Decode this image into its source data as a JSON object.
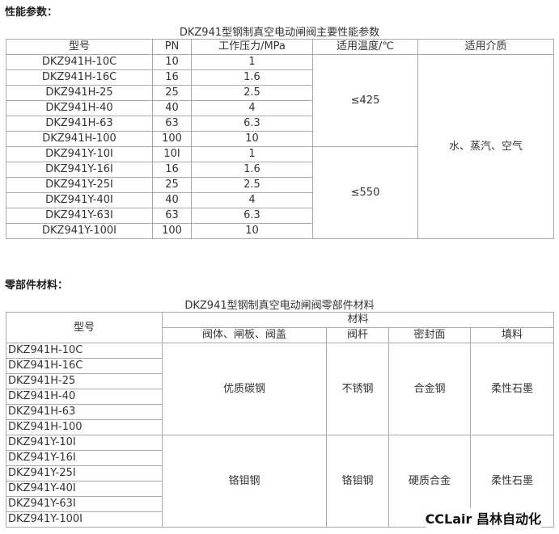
{
  "performance": {
    "heading": "性能参数：",
    "caption": "DKZ941型钢制真空电动闸阀主要性能参数",
    "headers": [
      "型号",
      "PN",
      "工作压力/MPa",
      "适用温度/℃",
      "适用介质"
    ],
    "rows": [
      [
        "DKZ941H-10C",
        "10",
        "1"
      ],
      [
        "DKZ941H-16C",
        "16",
        "1.6"
      ],
      [
        "DKZ941H-25",
        "25",
        "2.5"
      ],
      [
        "DKZ941H-40",
        "40",
        "4"
      ],
      [
        "DKZ941H-63",
        "63",
        "6.3"
      ],
      [
        "DKZ941H-100",
        "100",
        "10"
      ],
      [
        "DKZ941Y-10I",
        "10I",
        "1"
      ],
      [
        "DKZ941Y-16I",
        "16",
        "1.6"
      ],
      [
        "DKZ941Y-25I",
        "25",
        "2.5"
      ],
      [
        "DKZ941Y-40I",
        "40",
        "4"
      ],
      [
        "DKZ941Y-63I",
        "63",
        "6.3"
      ],
      [
        "DKZ941Y-100I",
        "100",
        "10"
      ]
    ],
    "temperatures": [
      "≤425",
      "≤550"
    ],
    "medium": "水、蒸汽、空气"
  },
  "materials": {
    "heading": "零部件材料：",
    "caption": "DKZ941型钢制真空电动闸阀零部件材料",
    "header_model": "型号",
    "header_material": "材料",
    "sub_headers": [
      "阀体、闸板、阀盖",
      "阀杆",
      "密封面",
      "填料"
    ],
    "groups": [
      {
        "models": [
          "DKZ941H-10C",
          "DKZ941H-16C",
          "DKZ941H-25",
          "DKZ941H-40",
          "DKZ941H-63",
          "DKZ941H-100"
        ],
        "materials": [
          "优质碳钢",
          "不锈钢",
          "合金钢",
          "柔性石墨"
        ]
      },
      {
        "models": [
          "DKZ941Y-10I",
          "DKZ941Y-16I",
          "DKZ941Y-25I",
          "DKZ941Y-40I",
          "DKZ941Y-63I",
          "DKZ941Y-100I"
        ],
        "materials": [
          "铬钼钢",
          "铬钼钢",
          "硬质合金",
          "柔性石墨"
        ]
      }
    ]
  },
  "watermark": "CCLair 昌林自动化"
}
